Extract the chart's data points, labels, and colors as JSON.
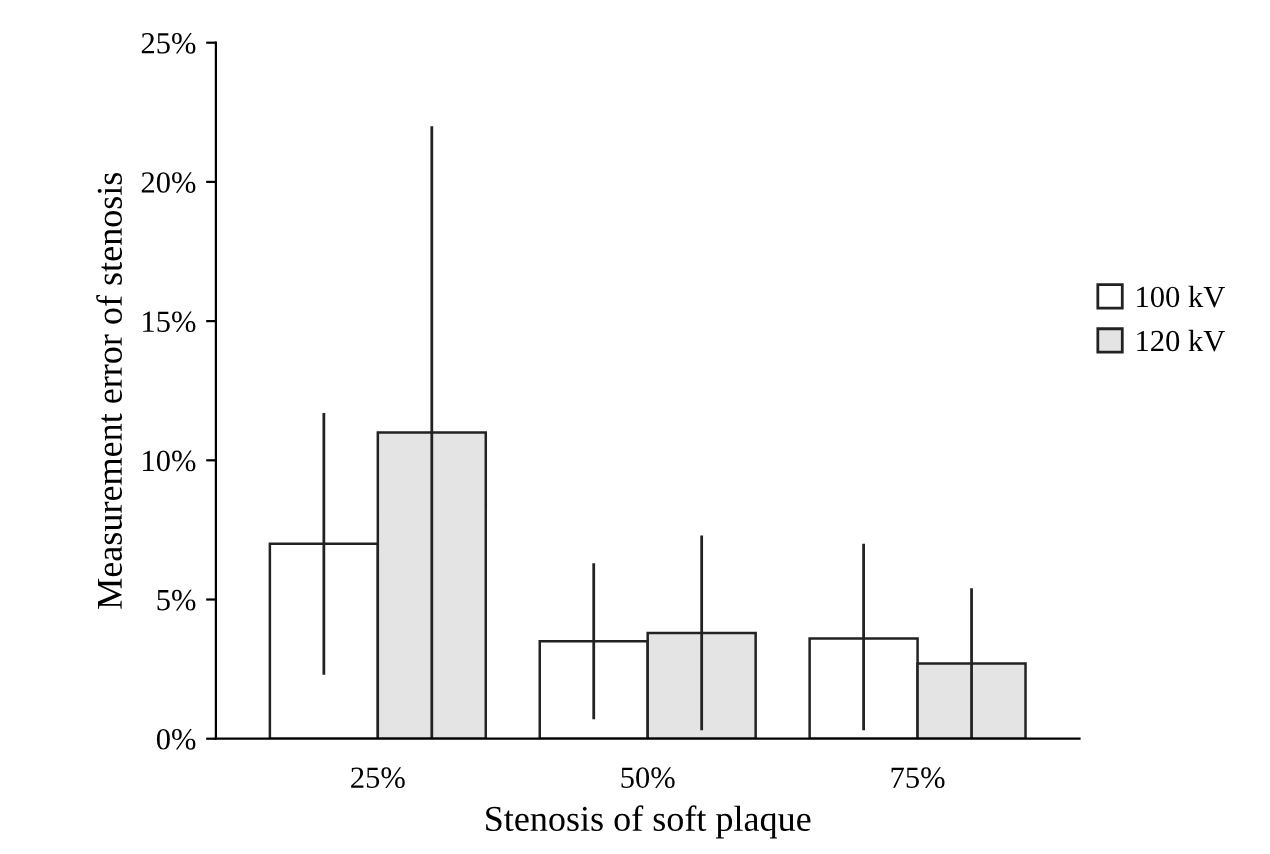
{
  "chart_data": {
    "type": "bar",
    "xlabel": "Stenosis of soft plaque",
    "ylabel": "Measurement error of stenosis",
    "categories": [
      "25%",
      "50%",
      "75%"
    ],
    "series": [
      {
        "name": "100 kV",
        "color": "#ffffff",
        "values": [
          7.0,
          3.5,
          3.6
        ],
        "errors": [
          [
            2.3,
            11.7
          ],
          [
            0.7,
            6.3
          ],
          [
            0.3,
            7.0
          ]
        ]
      },
      {
        "name": "120 kV",
        "color": "#e4e4e4",
        "values": [
          11.0,
          3.8,
          2.7
        ],
        "errors": [
          [
            0,
            22.0
          ],
          [
            0.3,
            7.3
          ],
          [
            0,
            5.4
          ]
        ]
      }
    ],
    "ylim": [
      0,
      25
    ],
    "yticks": [
      {
        "value": 0,
        "label": "0%"
      },
      {
        "value": 5,
        "label": "5%"
      },
      {
        "value": 10,
        "label": "10%"
      },
      {
        "value": 15,
        "label": "15%"
      },
      {
        "value": 20,
        "label": "20%"
      },
      {
        "value": 25,
        "label": "25%"
      }
    ],
    "grid": false,
    "legend": "right"
  }
}
